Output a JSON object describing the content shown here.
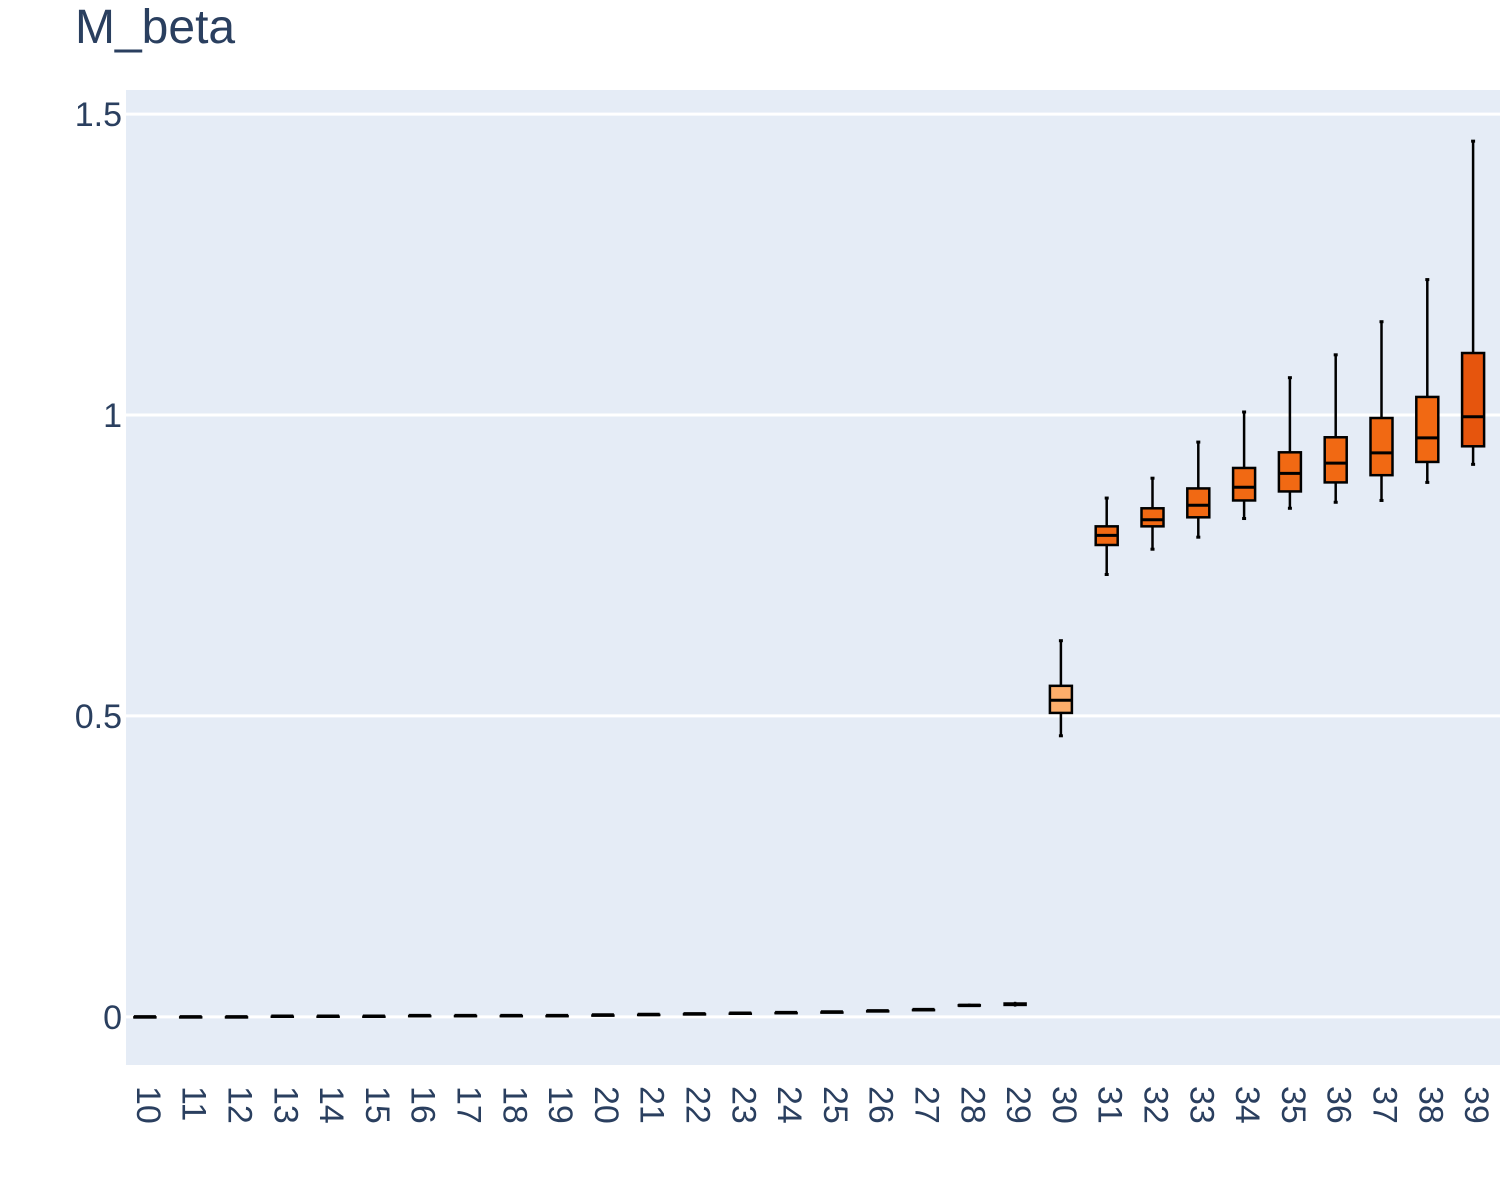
{
  "chart_data": {
    "type": "box",
    "title": "M_beta",
    "xlabel": "",
    "ylabel": "",
    "ylim": [
      -0.08,
      1.54
    ],
    "yticks": [
      0,
      0.5,
      1,
      1.5
    ],
    "ytick_labels": [
      "0",
      "0.5",
      "1",
      "1.5"
    ],
    "grid": true,
    "categories": [
      "10",
      "11",
      "12",
      "13",
      "14",
      "15",
      "16",
      "17",
      "18",
      "19",
      "20",
      "21",
      "22",
      "23",
      "24",
      "25",
      "26",
      "27",
      "28",
      "29",
      "30",
      "31",
      "32",
      "33",
      "34",
      "35",
      "36",
      "37",
      "38",
      "39"
    ],
    "boxes": [
      {
        "min": 0.0,
        "q1": 0.0,
        "median": 0.0,
        "q3": 0.0,
        "max": 0.0,
        "color": "#1a1a1a"
      },
      {
        "min": 0.0,
        "q1": 0.0,
        "median": 0.0,
        "q3": 0.0,
        "max": 0.0,
        "color": "#1a1a1a"
      },
      {
        "min": 0.0,
        "q1": 0.0,
        "median": 0.0,
        "q3": 0.0,
        "max": 0.0,
        "color": "#1a1a1a"
      },
      {
        "min": 0.001,
        "q1": 0.001,
        "median": 0.001,
        "q3": 0.001,
        "max": 0.001,
        "color": "#1a1a1a"
      },
      {
        "min": 0.001,
        "q1": 0.001,
        "median": 0.001,
        "q3": 0.001,
        "max": 0.001,
        "color": "#1a1a1a"
      },
      {
        "min": 0.001,
        "q1": 0.001,
        "median": 0.001,
        "q3": 0.001,
        "max": 0.001,
        "color": "#1a1a1a"
      },
      {
        "min": 0.002,
        "q1": 0.002,
        "median": 0.002,
        "q3": 0.002,
        "max": 0.002,
        "color": "#1a1a1a"
      },
      {
        "min": 0.002,
        "q1": 0.002,
        "median": 0.002,
        "q3": 0.002,
        "max": 0.002,
        "color": "#1a1a1a"
      },
      {
        "min": 0.002,
        "q1": 0.002,
        "median": 0.002,
        "q3": 0.002,
        "max": 0.002,
        "color": "#1a1a1a"
      },
      {
        "min": 0.002,
        "q1": 0.002,
        "median": 0.002,
        "q3": 0.002,
        "max": 0.002,
        "color": "#1a1a1a"
      },
      {
        "min": 0.003,
        "q1": 0.003,
        "median": 0.003,
        "q3": 0.003,
        "max": 0.003,
        "color": "#1a1a1a"
      },
      {
        "min": 0.004,
        "q1": 0.004,
        "median": 0.004,
        "q3": 0.004,
        "max": 0.004,
        "color": "#1a1a1a"
      },
      {
        "min": 0.005,
        "q1": 0.005,
        "median": 0.005,
        "q3": 0.005,
        "max": 0.005,
        "color": "#1a1a1a"
      },
      {
        "min": 0.006,
        "q1": 0.006,
        "median": 0.006,
        "q3": 0.006,
        "max": 0.006,
        "color": "#1a1a1a"
      },
      {
        "min": 0.007,
        "q1": 0.007,
        "median": 0.007,
        "q3": 0.007,
        "max": 0.007,
        "color": "#1a1a1a"
      },
      {
        "min": 0.008,
        "q1": 0.008,
        "median": 0.008,
        "q3": 0.008,
        "max": 0.008,
        "color": "#1a1a1a"
      },
      {
        "min": 0.009,
        "q1": 0.009,
        "median": 0.01,
        "q3": 0.01,
        "max": 0.011,
        "color": "#1a1a1a"
      },
      {
        "min": 0.011,
        "q1": 0.011,
        "median": 0.012,
        "q3": 0.012,
        "max": 0.013,
        "color": "#1a1a1a"
      },
      {
        "min": 0.017,
        "q1": 0.018,
        "median": 0.019,
        "q3": 0.02,
        "max": 0.022,
        "color": "#1a1a1a"
      },
      {
        "min": 0.017,
        "q1": 0.019,
        "median": 0.021,
        "q3": 0.023,
        "max": 0.025,
        "color": "#1a1a1a"
      },
      {
        "min": 0.467,
        "q1": 0.505,
        "median": 0.526,
        "q3": 0.55,
        "max": 0.625,
        "color": "#fdae6b"
      },
      {
        "min": 0.735,
        "q1": 0.784,
        "median": 0.8,
        "q3": 0.815,
        "max": 0.862,
        "color": "#f16913"
      },
      {
        "min": 0.777,
        "q1": 0.815,
        "median": 0.826,
        "q3": 0.845,
        "max": 0.895,
        "color": "#f16913"
      },
      {
        "min": 0.797,
        "q1": 0.83,
        "median": 0.85,
        "q3": 0.878,
        "max": 0.955,
        "color": "#f16913"
      },
      {
        "min": 0.828,
        "q1": 0.858,
        "median": 0.88,
        "q3": 0.912,
        "max": 1.005,
        "color": "#f16913"
      },
      {
        "min": 0.845,
        "q1": 0.873,
        "median": 0.903,
        "q3": 0.938,
        "max": 1.062,
        "color": "#f16913"
      },
      {
        "min": 0.855,
        "q1": 0.888,
        "median": 0.92,
        "q3": 0.963,
        "max": 1.1,
        "color": "#f16913"
      },
      {
        "min": 0.858,
        "q1": 0.9,
        "median": 0.937,
        "q3": 0.995,
        "max": 1.155,
        "color": "#f16913"
      },
      {
        "min": 0.888,
        "q1": 0.922,
        "median": 0.962,
        "q3": 1.03,
        "max": 1.225,
        "color": "#f16913"
      },
      {
        "min": 0.918,
        "q1": 0.948,
        "median": 0.997,
        "q3": 1.103,
        "max": 1.455,
        "color": "#e6550d"
      }
    ],
    "colors": {
      "plot_bg": "#e5ecf6",
      "grid": "#ffffff",
      "text": "#2a3f5f",
      "line": "#000000"
    }
  }
}
